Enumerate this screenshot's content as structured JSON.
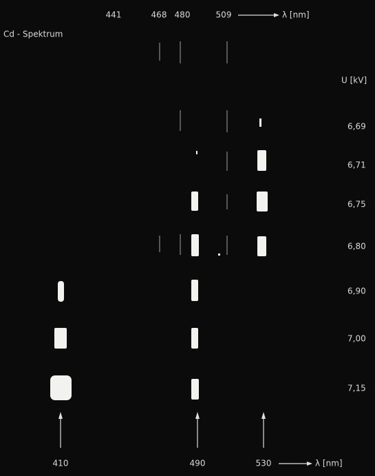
{
  "top": {
    "wavelengths": [
      "441",
      "468",
      "480",
      "509"
    ],
    "axis_label": "λ [nm]"
  },
  "reference": "Cd - Spektrum",
  "voltage_label": "U [kV]",
  "voltages": [
    "6,69",
    "6,71",
    "6,75",
    "6,80",
    "6,90",
    "7,00",
    "7,15"
  ],
  "bottom": {
    "wavelengths": [
      "410",
      "490",
      "530"
    ],
    "axis_label": "λ [nm]"
  }
}
